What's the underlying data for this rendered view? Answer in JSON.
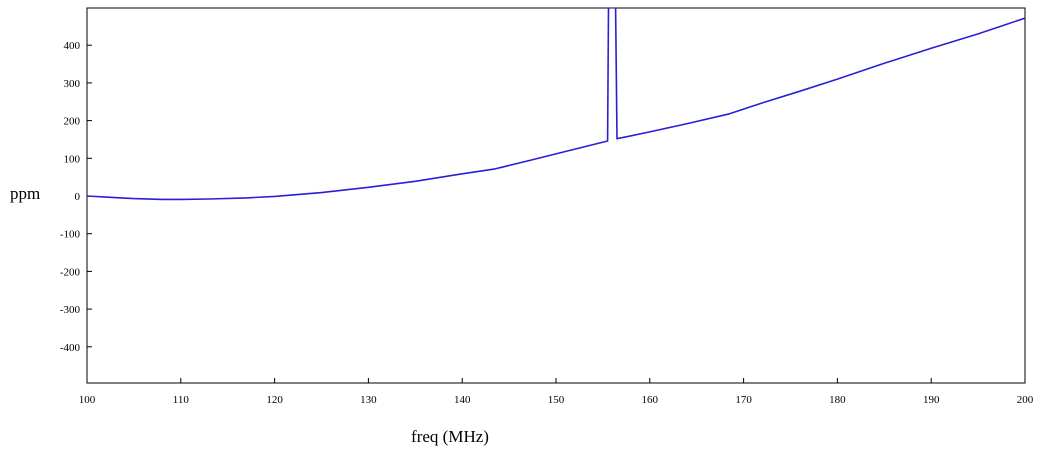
{
  "chart_data": {
    "type": "line",
    "title": "",
    "xlabel": "freq (MHz)",
    "ylabel": "ppm",
    "xlim": [
      100,
      200
    ],
    "ylim": [
      -500,
      500
    ],
    "xticks": [
      100,
      110,
      120,
      130,
      140,
      150,
      160,
      170,
      180,
      190,
      200
    ],
    "yticks": [
      -400,
      -300,
      -200,
      -100,
      0,
      100,
      200,
      300,
      400
    ],
    "grid": false,
    "legend": "none",
    "series": [
      {
        "color": "#2a1fd6",
        "x": [
          100,
          102,
          105,
          108,
          110,
          113,
          117,
          120,
          125,
          130,
          135,
          140,
          143.5,
          147,
          151,
          155.5,
          155.6,
          155.75,
          156.2,
          156.35,
          156.5,
          160,
          164,
          168.5,
          172,
          176,
          180,
          185,
          190,
          195,
          200
        ],
        "y": [
          0,
          -3,
          -7,
          -9,
          -9,
          -8,
          -5,
          -1,
          9,
          23,
          39,
          59,
          72,
          93,
          118,
          146,
          500,
          500,
          500,
          500,
          152,
          170,
          192,
          218,
          247,
          278,
          310,
          352,
          392,
          430,
          472
        ]
      }
    ]
  }
}
